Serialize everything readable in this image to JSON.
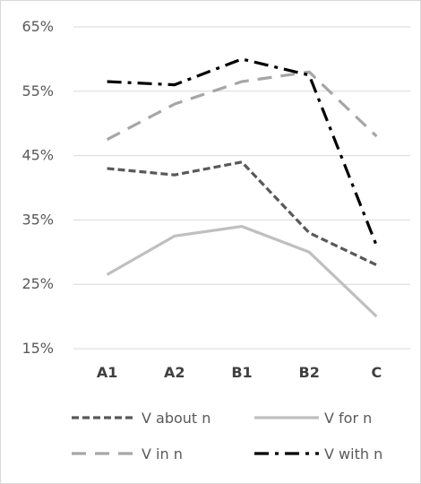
{
  "chart_data": {
    "type": "line",
    "title": "",
    "xlabel": "",
    "ylabel": "",
    "categories": [
      "A1",
      "A2",
      "B1",
      "B2",
      "C"
    ],
    "ylim": [
      15,
      65
    ],
    "yticks": [
      15,
      25,
      35,
      45,
      55,
      65
    ],
    "ytick_labels": [
      "15%",
      "25%",
      "35%",
      "45%",
      "55%",
      "65%"
    ],
    "grid": true,
    "legend_position": "bottom",
    "series": [
      {
        "name": "V about n",
        "values": [
          43,
          42,
          44,
          33,
          28
        ],
        "color": "#595959",
        "dash": "short-dash"
      },
      {
        "name": "V for n",
        "values": [
          26.5,
          32.5,
          34,
          30,
          20
        ],
        "color": "#bfbfbf",
        "dash": "solid"
      },
      {
        "name": "V in n",
        "values": [
          47.5,
          53,
          56.5,
          58,
          48
        ],
        "color": "#a6a6a6",
        "dash": "long-dash"
      },
      {
        "name": "V with n",
        "values": [
          56.5,
          56,
          60,
          57.5,
          31
        ],
        "color": "#000000",
        "dash": "dash-dot"
      }
    ]
  }
}
